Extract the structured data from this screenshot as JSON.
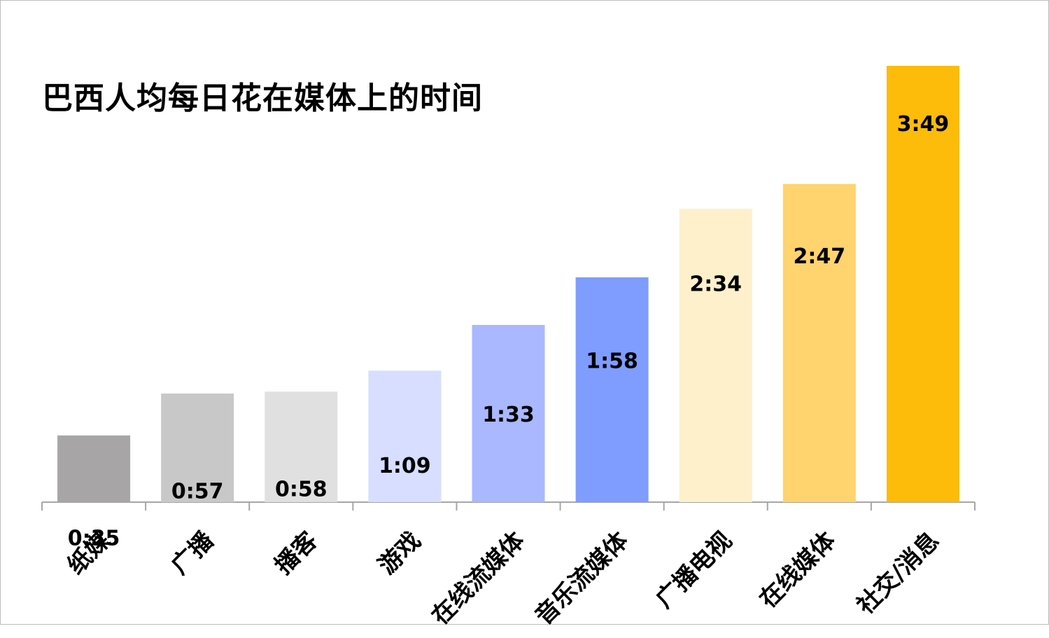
{
  "chart_data": {
    "type": "bar",
    "title": "巴西人均每日花在媒体上的时间",
    "categories": [
      "纸媒",
      "广播",
      "播客",
      "游戏",
      "在线流媒体",
      "音乐流媒体",
      "广播电视",
      "在线媒体",
      "社交/消息"
    ],
    "values": [
      35,
      57,
      58,
      69,
      93,
      118,
      154,
      167,
      229
    ],
    "value_labels": [
      "0:35",
      "0:57",
      "0:58",
      "1:09",
      "1:33",
      "1:58",
      "2:34",
      "2:47",
      "3:49"
    ],
    "unit": "minutes",
    "colors": [
      "#a7a5a6",
      "#c8c8c8",
      "#e0e0e0",
      "#d7deff",
      "#a9b8ff",
      "#7f9cff",
      "#fff0cc",
      "#ffd36e",
      "#fdbb0a"
    ],
    "ylim": [
      0,
      230
    ],
    "grid": false,
    "legend": "none",
    "xlabel": "",
    "ylabel": ""
  }
}
